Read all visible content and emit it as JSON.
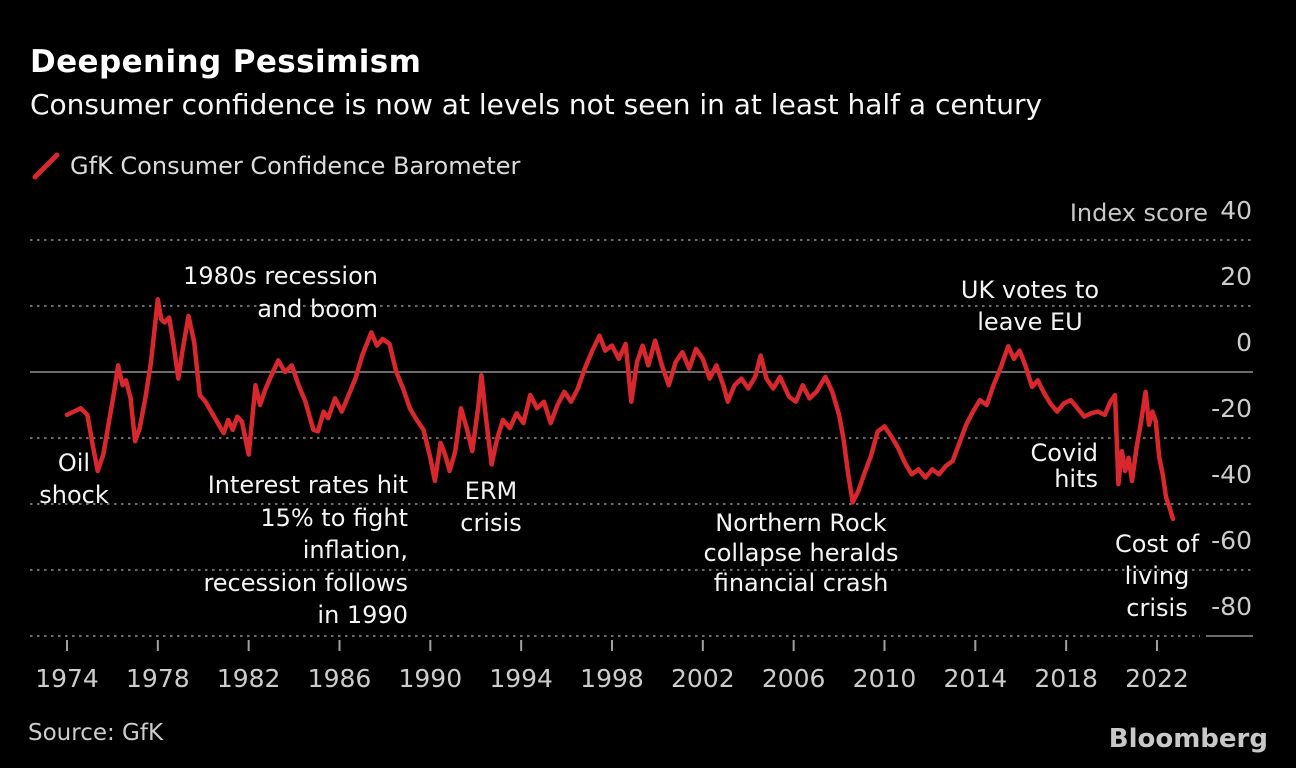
{
  "header": {
    "title": "Deepening Pessimism",
    "subtitle": "Consumer confidence is now at levels not seen in at least half a century"
  },
  "legend": {
    "label": "GfK Consumer Confidence Barometer",
    "mark": "red-diagonal-stroke"
  },
  "source": "Source: GfK",
  "brand": "Bloomberg",
  "colors": {
    "background": "#000000",
    "line_red": "#d8282e",
    "grid_dotted": "#6b6b6b",
    "grid_solid": "#8f8f8f",
    "tick": "#a0a0a0",
    "axis_text": "#cccccc",
    "annotation_text": "#f4f4f4"
  },
  "chart_data": {
    "type": "line",
    "title": "Deepening Pessimism",
    "subtitle": "Consumer confidence is now at levels not seen in at least half a century",
    "ylabel": "Index score",
    "xlabel": "",
    "legend_position": "top-left",
    "grid": "dotted-horizontal",
    "xlim": [
      1974,
      2023
    ],
    "ylim": [
      -80,
      40
    ],
    "x_ticks": [
      1974,
      1978,
      1982,
      1986,
      1990,
      1994,
      1998,
      2002,
      2006,
      2010,
      2014,
      2018,
      2022
    ],
    "y_ticks": [
      40,
      20,
      0,
      -20,
      -40,
      -60,
      -80
    ],
    "zero_line": 0,
    "series": [
      {
        "name": "GfK Consumer Confidence Barometer",
        "color": "#d8282e",
        "points": [
          [
            1974.0,
            -13
          ],
          [
            1974.3,
            -12
          ],
          [
            1974.6,
            -11
          ],
          [
            1974.9,
            -13
          ],
          [
            1975.1,
            -21
          ],
          [
            1975.35,
            -30
          ],
          [
            1975.6,
            -25
          ],
          [
            1975.85,
            -15
          ],
          [
            1976.1,
            -5
          ],
          [
            1976.25,
            2
          ],
          [
            1976.45,
            -4
          ],
          [
            1976.6,
            -2.5
          ],
          [
            1976.8,
            -8
          ],
          [
            1977.0,
            -21
          ],
          [
            1977.2,
            -17
          ],
          [
            1977.45,
            -8
          ],
          [
            1977.7,
            3
          ],
          [
            1978.0,
            22
          ],
          [
            1978.15,
            16
          ],
          [
            1978.3,
            15
          ],
          [
            1978.5,
            16.5
          ],
          [
            1978.7,
            8
          ],
          [
            1978.9,
            -2
          ],
          [
            1979.1,
            7
          ],
          [
            1979.35,
            17
          ],
          [
            1979.6,
            9
          ],
          [
            1979.85,
            -7
          ],
          [
            1980.1,
            -9
          ],
          [
            1980.35,
            -12
          ],
          [
            1980.6,
            -15
          ],
          [
            1980.9,
            -18.5
          ],
          [
            1981.1,
            -14.5
          ],
          [
            1981.3,
            -17.5
          ],
          [
            1981.5,
            -13.5
          ],
          [
            1981.7,
            -15
          ],
          [
            1982.0,
            -25
          ],
          [
            1982.3,
            -4
          ],
          [
            1982.5,
            -10
          ],
          [
            1982.75,
            -5
          ],
          [
            1983.0,
            -1
          ],
          [
            1983.3,
            3.5
          ],
          [
            1983.6,
            0
          ],
          [
            1983.9,
            2
          ],
          [
            1984.2,
            -4
          ],
          [
            1984.5,
            -9
          ],
          [
            1984.85,
            -17.5
          ],
          [
            1985.05,
            -18
          ],
          [
            1985.3,
            -12
          ],
          [
            1985.5,
            -14
          ],
          [
            1985.8,
            -8
          ],
          [
            1986.1,
            -12
          ],
          [
            1986.4,
            -7
          ],
          [
            1986.7,
            -2
          ],
          [
            1987.0,
            5
          ],
          [
            1987.4,
            12
          ],
          [
            1987.65,
            8
          ],
          [
            1987.9,
            10
          ],
          [
            1988.2,
            8.5
          ],
          [
            1988.5,
            0
          ],
          [
            1988.8,
            -5
          ],
          [
            1989.1,
            -11
          ],
          [
            1989.4,
            -14.5
          ],
          [
            1989.7,
            -17.5
          ],
          [
            1990.0,
            -26
          ],
          [
            1990.2,
            -33
          ],
          [
            1990.45,
            -21.5
          ],
          [
            1990.65,
            -25
          ],
          [
            1990.85,
            -30
          ],
          [
            1991.1,
            -24
          ],
          [
            1991.35,
            -11
          ],
          [
            1991.6,
            -17
          ],
          [
            1991.85,
            -24
          ],
          [
            1992.1,
            -11
          ],
          [
            1992.25,
            -1
          ],
          [
            1992.45,
            -14
          ],
          [
            1992.7,
            -28
          ],
          [
            1992.95,
            -20
          ],
          [
            1993.2,
            -14.5
          ],
          [
            1993.5,
            -17
          ],
          [
            1993.8,
            -12.5
          ],
          [
            1994.1,
            -15.5
          ],
          [
            1994.4,
            -7
          ],
          [
            1994.7,
            -11
          ],
          [
            1995.0,
            -9
          ],
          [
            1995.3,
            -15.5
          ],
          [
            1995.6,
            -10
          ],
          [
            1995.9,
            -6
          ],
          [
            1996.2,
            -9
          ],
          [
            1996.5,
            -5
          ],
          [
            1996.8,
            1
          ],
          [
            1997.1,
            6
          ],
          [
            1997.45,
            11
          ],
          [
            1997.7,
            6.5
          ],
          [
            1998.0,
            8
          ],
          [
            1998.3,
            4
          ],
          [
            1998.6,
            8.5
          ],
          [
            1998.85,
            -9
          ],
          [
            1999.1,
            3
          ],
          [
            1999.35,
            8
          ],
          [
            1999.6,
            2
          ],
          [
            1999.9,
            9.5
          ],
          [
            2000.2,
            2
          ],
          [
            2000.5,
            -4
          ],
          [
            2000.8,
            3
          ],
          [
            2001.1,
            6
          ],
          [
            2001.4,
            1
          ],
          [
            2001.7,
            7
          ],
          [
            2002.0,
            4
          ],
          [
            2002.3,
            -2
          ],
          [
            2002.6,
            2
          ],
          [
            2002.9,
            -4
          ],
          [
            2003.1,
            -9
          ],
          [
            2003.4,
            -4
          ],
          [
            2003.7,
            -2
          ],
          [
            2004.0,
            -5
          ],
          [
            2004.3,
            -1.5
          ],
          [
            2004.55,
            5
          ],
          [
            2004.8,
            -2
          ],
          [
            2005.1,
            -5
          ],
          [
            2005.4,
            -1.5
          ],
          [
            2005.8,
            -7.5
          ],
          [
            2006.1,
            -9
          ],
          [
            2006.4,
            -4
          ],
          [
            2006.7,
            -8
          ],
          [
            2007.0,
            -6
          ],
          [
            2007.4,
            -1.5
          ],
          [
            2007.7,
            -6
          ],
          [
            2008.0,
            -13
          ],
          [
            2008.2,
            -20.5
          ],
          [
            2008.4,
            -31
          ],
          [
            2008.6,
            -39.5
          ],
          [
            2008.85,
            -36
          ],
          [
            2009.1,
            -31
          ],
          [
            2009.4,
            -25.5
          ],
          [
            2009.7,
            -18
          ],
          [
            2010.0,
            -16.5
          ],
          [
            2010.3,
            -19.5
          ],
          [
            2010.6,
            -23
          ],
          [
            2010.9,
            -27.5
          ],
          [
            2011.2,
            -31
          ],
          [
            2011.5,
            -29.5
          ],
          [
            2011.8,
            -32
          ],
          [
            2012.1,
            -29.5
          ],
          [
            2012.4,
            -31
          ],
          [
            2012.7,
            -28.5
          ],
          [
            2013.0,
            -27
          ],
          [
            2013.3,
            -21.5
          ],
          [
            2013.6,
            -16
          ],
          [
            2013.9,
            -12
          ],
          [
            2014.2,
            -8.5
          ],
          [
            2014.5,
            -10
          ],
          [
            2014.8,
            -4
          ],
          [
            2015.1,
            1
          ],
          [
            2015.45,
            7.8
          ],
          [
            2015.7,
            4
          ],
          [
            2015.95,
            6.5
          ],
          [
            2016.2,
            2
          ],
          [
            2016.5,
            -4.5
          ],
          [
            2016.75,
            -2.5
          ],
          [
            2017.0,
            -6
          ],
          [
            2017.3,
            -9.5
          ],
          [
            2017.6,
            -12
          ],
          [
            2017.9,
            -9.5
          ],
          [
            2018.2,
            -8.5
          ],
          [
            2018.5,
            -11
          ],
          [
            2018.8,
            -13.5
          ],
          [
            2019.1,
            -12.5
          ],
          [
            2019.4,
            -12
          ],
          [
            2019.7,
            -13
          ],
          [
            2019.95,
            -9
          ],
          [
            2020.15,
            -7
          ],
          [
            2020.3,
            -34
          ],
          [
            2020.45,
            -24
          ],
          [
            2020.6,
            -30
          ],
          [
            2020.75,
            -26
          ],
          [
            2020.9,
            -33
          ],
          [
            2021.1,
            -23
          ],
          [
            2021.3,
            -15
          ],
          [
            2021.5,
            -6
          ],
          [
            2021.65,
            -16
          ],
          [
            2021.8,
            -12
          ],
          [
            2021.95,
            -15
          ],
          [
            2022.1,
            -26
          ],
          [
            2022.25,
            -31
          ],
          [
            2022.4,
            -38
          ],
          [
            2022.55,
            -41
          ],
          [
            2022.7,
            -44.5
          ]
        ]
      }
    ],
    "axis_header": {
      "label": "Index score",
      "top_value": "40"
    },
    "annotations": [
      {
        "id": "oil-shock",
        "lines": [
          "Oil",
          "shock"
        ]
      },
      {
        "id": "eighties-recession",
        "lines": [
          "1980s recession",
          "and boom"
        ]
      },
      {
        "id": "interest-rates",
        "lines": [
          "Interest rates hit",
          "15% to fight",
          "inflation,",
          "recession follows",
          "in 1990"
        ]
      },
      {
        "id": "erm-crisis",
        "lines": [
          "ERM",
          "crisis"
        ]
      },
      {
        "id": "northern-rock",
        "lines": [
          "Northern Rock",
          "collapse heralds",
          "financial crash"
        ]
      },
      {
        "id": "uk-votes",
        "lines": [
          "UK votes to",
          "leave EU"
        ]
      },
      {
        "id": "covid",
        "lines": [
          "Covid",
          "hits"
        ]
      },
      {
        "id": "cost-of-living",
        "lines": [
          "Cost of",
          "living",
          "crisis"
        ]
      }
    ]
  }
}
